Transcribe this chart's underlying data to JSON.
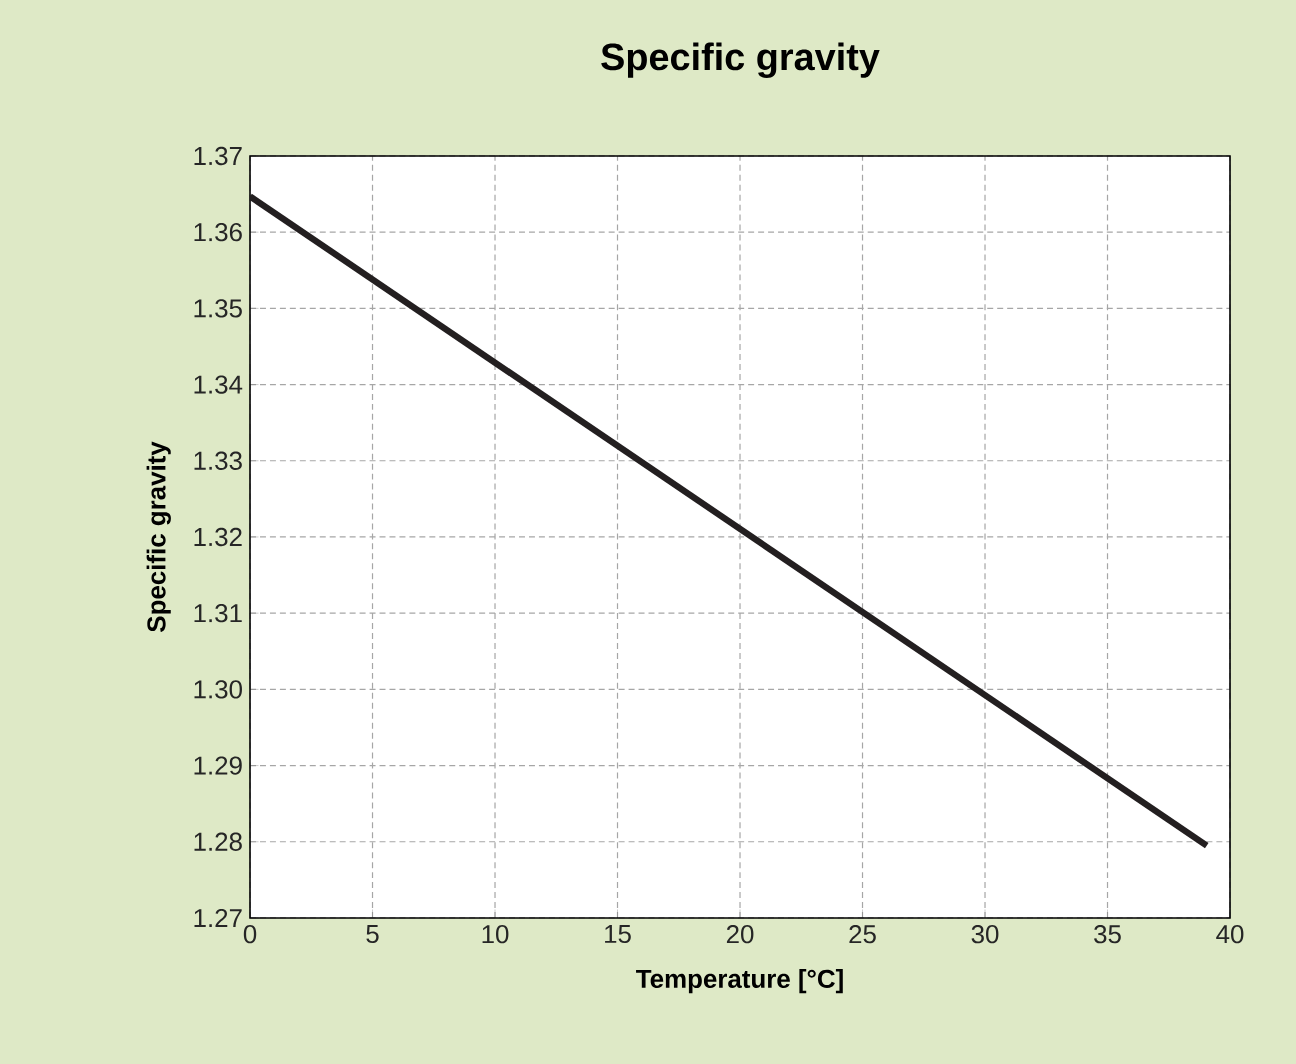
{
  "chart_data": {
    "type": "line",
    "title": "Specific gravity",
    "xlabel": "Temperature [°C]",
    "ylabel": "Specific gravity",
    "series": [
      {
        "color": "#231f20",
        "x": [
          0,
          39.05
        ],
        "values": [
          1.3647,
          1.2795
        ]
      }
    ],
    "xlim": [
      0,
      40
    ],
    "xticks": [
      0,
      5,
      10,
      15,
      20,
      25,
      30,
      35,
      40
    ],
    "ylim": [
      1.27,
      1.37
    ],
    "yticks": [
      1.27,
      1.28,
      1.29,
      {
        "value": 1.3,
        "label": "1.30"
      },
      1.31,
      1.32,
      1.33,
      1.34,
      1.35,
      1.36,
      1.37
    ],
    "grid": true,
    "marker": "none",
    "line_style": "solid"
  }
}
